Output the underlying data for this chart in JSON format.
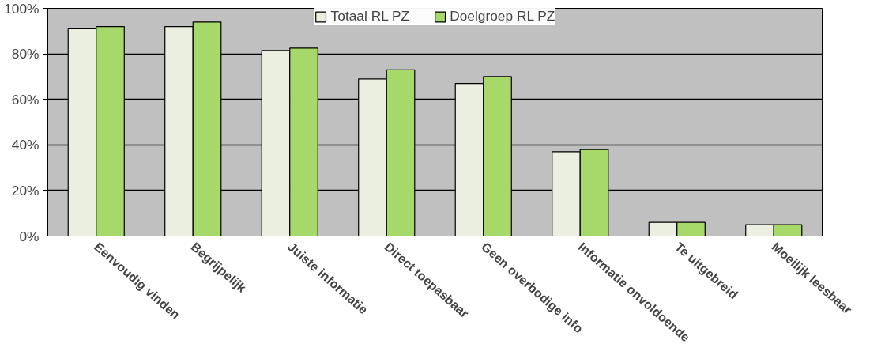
{
  "chart_data": {
    "type": "bar",
    "categories": [
      "Eenvoudig vinden",
      "Begrijpelijk",
      "Juiste informatie",
      "Direct toepasbaar",
      "Geen overbodige info",
      "Informatie onvoldoende",
      "Te uitgebreid",
      "Moeilijk leesbaar"
    ],
    "series": [
      {
        "name": "Totaal RL PZ",
        "color": "#ebefdf",
        "values": [
          91,
          92,
          81.5,
          69,
          67,
          37,
          6,
          5
        ]
      },
      {
        "name": "Doelgroep RL PZ",
        "color": "#a6d96a",
        "values": [
          92,
          94,
          82.5,
          73,
          70,
          38,
          6,
          5
        ]
      }
    ],
    "ylim": [
      0,
      100
    ],
    "yticks": [
      {
        "value": 0,
        "label": "0%"
      },
      {
        "value": 20,
        "label": "20%"
      },
      {
        "value": 40,
        "label": "40%"
      },
      {
        "value": 60,
        "label": "60%"
      },
      {
        "value": 80,
        "label": "80%"
      },
      {
        "value": 100,
        "label": "100%"
      }
    ],
    "grid": "y",
    "legend": "top"
  }
}
